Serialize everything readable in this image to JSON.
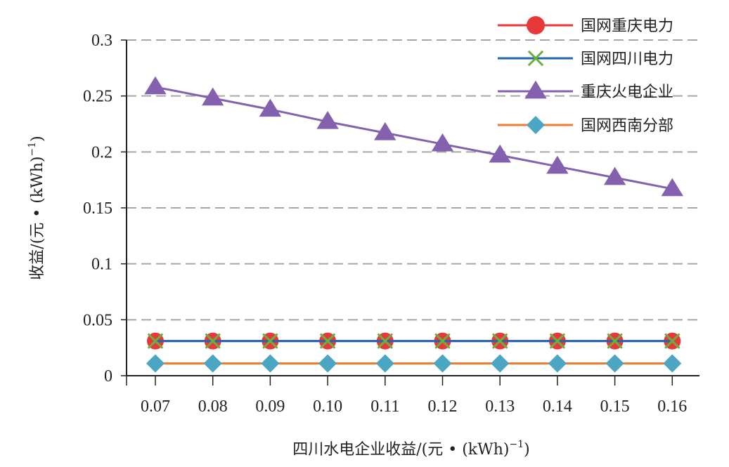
{
  "chart_data": {
    "type": "line",
    "title": "",
    "xlabel": "四川水电企业收益/(元 • (kWh)",
    "xlabel_sup": "−1",
    "xlabel_tail": ")",
    "ylabel": "收益/(元 • (kWh)",
    "ylabel_sup": "−1",
    "ylabel_tail": ")",
    "x": [
      "0.07",
      "0.08",
      "0.09",
      "0.10",
      "0.11",
      "0.12",
      "0.13",
      "0.14",
      "0.15",
      "0.16"
    ],
    "ylim": [
      0,
      0.3
    ],
    "yticks": [
      "0",
      "0.05",
      "0.1",
      "0.15",
      "0.2",
      "0.25",
      "0.3"
    ],
    "grid": "horizontal dashed",
    "legend_position": "top-right",
    "series": [
      {
        "name": "国网重庆电力",
        "color": "#E8383A",
        "line_color": "#E8383A",
        "marker": "circle",
        "values": [
          0.031,
          0.031,
          0.031,
          0.031,
          0.031,
          0.031,
          0.031,
          0.031,
          0.031,
          0.031
        ]
      },
      {
        "name": "国网四川电力",
        "color": "#6DAF3F",
        "line_color": "#2067B0",
        "marker": "x",
        "values": [
          0.031,
          0.031,
          0.031,
          0.031,
          0.031,
          0.031,
          0.031,
          0.031,
          0.031,
          0.031
        ]
      },
      {
        "name": "重庆火电企业",
        "color": "#8461AE",
        "line_color": "#8461AE",
        "marker": "triangle",
        "values": [
          0.258,
          0.248,
          0.238,
          0.227,
          0.217,
          0.207,
          0.197,
          0.187,
          0.177,
          0.167
        ]
      },
      {
        "name": "国网西南分部",
        "color": "#4BA6C4",
        "line_color": "#EE7D31",
        "marker": "diamond",
        "values": [
          0.011,
          0.011,
          0.011,
          0.011,
          0.011,
          0.011,
          0.011,
          0.011,
          0.011,
          0.011
        ]
      }
    ]
  }
}
